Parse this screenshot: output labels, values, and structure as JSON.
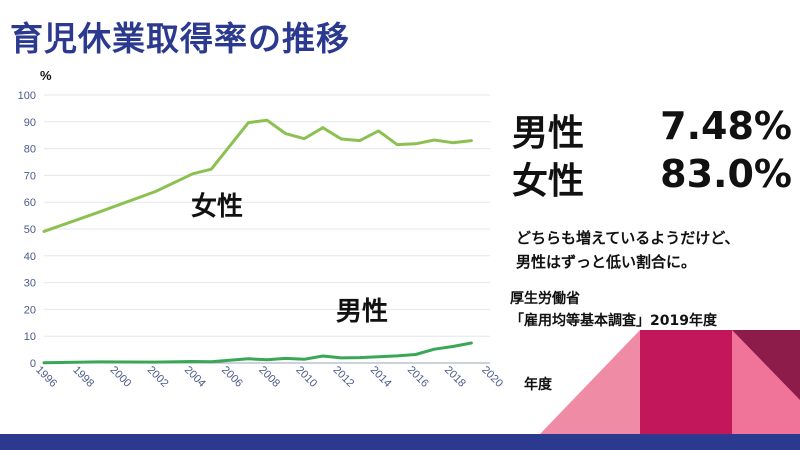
{
  "title": "育児休業取得率の推移",
  "stats": [
    {
      "label": "男性",
      "value": "7.48%"
    },
    {
      "label": "女性",
      "value": "83.0%"
    }
  ],
  "comment_lines": [
    "どちらも増えているようだけど、",
    "男性はずっと低い割合に。"
  ],
  "source_lines": [
    "厚生労働省",
    "「雇用均等基本調査」2019年度"
  ],
  "colors": {
    "title": "#2b3a8f",
    "female_line": "#8cc152",
    "male_line": "#3aa757",
    "footer": "#2b3a8f"
  },
  "chart_data": {
    "type": "line",
    "xlabel": "年度",
    "ylabel": "%",
    "xlim": [
      1996,
      2020
    ],
    "ylim": [
      0,
      100
    ],
    "x_ticks": [
      1996,
      1998,
      2000,
      2002,
      2004,
      2006,
      2008,
      2010,
      2012,
      2014,
      2016,
      2018,
      2020
    ],
    "y_ticks": [
      0,
      10,
      20,
      30,
      40,
      50,
      60,
      70,
      80,
      90,
      100
    ],
    "series": [
      {
        "name": "女性",
        "color": "#8cc152",
        "x": [
          1996,
          1999,
          2002,
          2004,
          2005,
          2007,
          2008,
          2009,
          2010,
          2011,
          2012,
          2013,
          2014,
          2015,
          2016,
          2017,
          2018,
          2019
        ],
        "y": [
          49.1,
          56.4,
          64.0,
          70.6,
          72.3,
          89.7,
          90.6,
          85.6,
          83.7,
          87.8,
          83.6,
          83.0,
          86.6,
          81.5,
          81.8,
          83.2,
          82.2,
          83.0
        ]
      },
      {
        "name": "男性",
        "color": "#3aa757",
        "x": [
          1996,
          1999,
          2002,
          2004,
          2005,
          2007,
          2008,
          2009,
          2010,
          2011,
          2012,
          2013,
          2014,
          2015,
          2016,
          2017,
          2018,
          2019
        ],
        "y": [
          0.12,
          0.42,
          0.33,
          0.56,
          0.5,
          1.56,
          1.23,
          1.72,
          1.38,
          2.63,
          1.89,
          2.03,
          2.3,
          2.65,
          3.16,
          5.14,
          6.16,
          7.48
        ]
      }
    ]
  }
}
